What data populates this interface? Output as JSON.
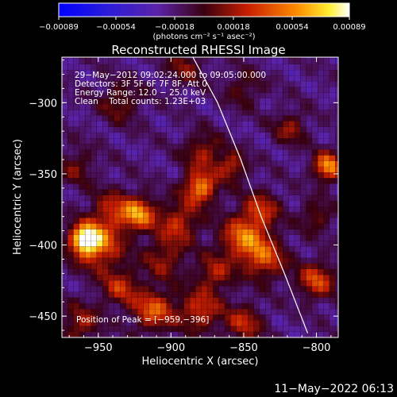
{
  "chart_data": {
    "type": "heatmap",
    "title": "Reconstructed RHESSI Image",
    "xlabel": "Heliocentric X (arcsec)",
    "ylabel": "Heliocentric Y (arcsec)",
    "xlim": [
      -975,
      -785
    ],
    "ylim": [
      -465,
      -268
    ],
    "x_ticks": [
      -950,
      -900,
      -850,
      -800
    ],
    "y_ticks": [
      -300,
      -350,
      -400,
      -450
    ],
    "x_tick_labels": [
      "−950",
      "−900",
      "−850",
      "−800"
    ],
    "y_tick_labels": [
      "−300",
      "−350",
      "−400",
      "−450"
    ],
    "colorbar": {
      "min": -0.00089,
      "max": 0.00089,
      "ticks": [
        -0.00089,
        -0.00054,
        -0.00018,
        0.00018,
        0.00054,
        0.00089
      ],
      "tick_labels": [
        "−0.00089",
        "−0.00054",
        "−0.00018",
        "0.00018",
        "0.00054",
        "0.00089"
      ],
      "unit_label": "(photons cm⁻² s⁻¹ asec⁻²)"
    },
    "annotations": [
      "29−May−2012 09:02:24.000 to 09:05:00.000",
      "Detectors: 3F 5F 6F 7F 8F, Att 0",
      "Energy Range: 12.0 − 25.0 keV",
      "Clean    Total counts: 1.23E+03"
    ],
    "peak_label": "Position of Peak = [−959,−396]",
    "peak_position": [
      -959,
      -396
    ],
    "hot_spots": [
      {
        "x": -959,
        "y": -396,
        "value": 0.00089,
        "sigma": 7
      },
      {
        "x": -950,
        "y": -400,
        "value": 0.00062,
        "sigma": 12
      },
      {
        "x": -922,
        "y": -378,
        "value": 0.00072,
        "sigma": 8
      },
      {
        "x": -940,
        "y": -375,
        "value": 0.0004,
        "sigma": 10
      },
      {
        "x": -895,
        "y": -385,
        "value": 0.00048,
        "sigma": 10
      },
      {
        "x": -880,
        "y": -360,
        "value": 0.00075,
        "sigma": 8
      },
      {
        "x": -878,
        "y": -335,
        "value": 0.0004,
        "sigma": 9
      },
      {
        "x": -858,
        "y": -345,
        "value": 0.00046,
        "sigma": 7
      },
      {
        "x": -838,
        "y": -375,
        "value": 0.00045,
        "sigma": 9
      },
      {
        "x": -850,
        "y": -395,
        "value": 0.00065,
        "sigma": 11
      },
      {
        "x": -835,
        "y": -410,
        "value": 0.00052,
        "sigma": 10
      },
      {
        "x": -870,
        "y": -420,
        "value": 0.0004,
        "sigma": 9
      },
      {
        "x": -905,
        "y": -410,
        "value": 0.00036,
        "sigma": 10
      },
      {
        "x": -935,
        "y": -430,
        "value": 0.00045,
        "sigma": 9
      },
      {
        "x": -912,
        "y": -446,
        "value": 0.0006,
        "sigma": 10
      },
      {
        "x": -880,
        "y": -446,
        "value": 0.0005,
        "sigma": 10
      },
      {
        "x": -850,
        "y": -455,
        "value": 0.00045,
        "sigma": 9
      },
      {
        "x": -800,
        "y": -425,
        "value": 0.00055,
        "sigma": 9
      },
      {
        "x": -792,
        "y": -345,
        "value": 0.00078,
        "sigma": 7
      },
      {
        "x": -800,
        "y": -380,
        "value": 0.0003,
        "sigma": 8
      },
      {
        "x": -818,
        "y": -318,
        "value": 0.00035,
        "sigma": 8
      },
      {
        "x": -935,
        "y": -300,
        "value": 0.0003,
        "sigma": 10
      },
      {
        "x": -965,
        "y": -345,
        "value": 0.00028,
        "sigma": 9
      },
      {
        "x": -962,
        "y": -455,
        "value": 0.0004,
        "sigma": 9
      },
      {
        "x": -850,
        "y": -290,
        "value": 0.00025,
        "sigma": 9
      },
      {
        "x": -890,
        "y": -275,
        "value": 0.0003,
        "sigma": 9
      }
    ],
    "limb_curve": [
      [
        -886,
        -266
      ],
      [
        -868,
        -300
      ],
      [
        -852,
        -340
      ],
      [
        -838,
        -380
      ],
      [
        -822,
        -420
      ],
      [
        -806,
        -462
      ]
    ]
  },
  "footer_timestamp": "11−May−2022 06:13"
}
